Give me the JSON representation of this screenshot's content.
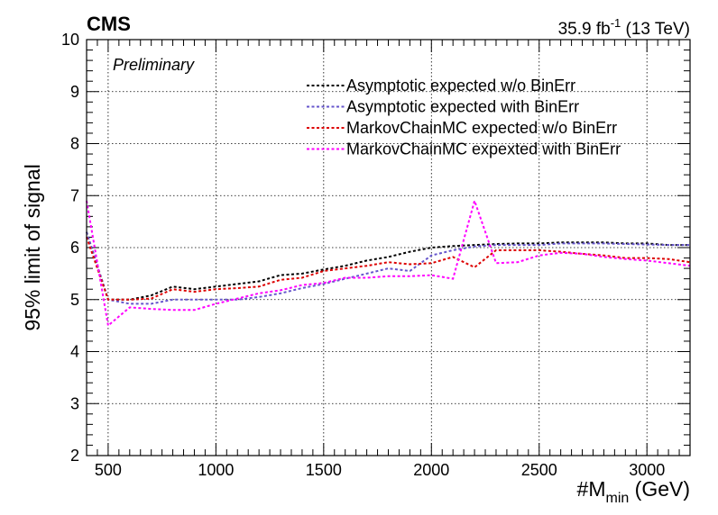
{
  "chart_data": {
    "type": "line",
    "experiment": "CMS",
    "status": "Preliminary",
    "lumi_text": "35.9 fb",
    "lumi_sup": "-1",
    "energy_text": " (13 TeV)",
    "xlabel": {
      "main": "#M",
      "sub": "min",
      "unit": " (GeV)"
    },
    "ylabel": "95% limit of signal",
    "xlim": [
      400,
      3200
    ],
    "ylim": [
      2,
      10
    ],
    "xticks": [
      500,
      1000,
      1500,
      2000,
      2500,
      3000
    ],
    "yticks": [
      2,
      3,
      4,
      5,
      6,
      7,
      8,
      9,
      10
    ],
    "grid": true,
    "legend_position": "top-right",
    "x": [
      400,
      500,
      600,
      700,
      800,
      900,
      1000,
      1100,
      1200,
      1300,
      1400,
      1500,
      1600,
      1700,
      1800,
      1900,
      2000,
      2100,
      2200,
      2300,
      2400,
      2500,
      2600,
      2700,
      2800,
      2900,
      3000,
      3100,
      3200
    ],
    "series": [
      {
        "name": "Asymptotic expected w/o BinErr",
        "color": "#000000",
        "values": [
          6.3,
          5.0,
          5.0,
          5.08,
          5.25,
          5.2,
          5.25,
          5.3,
          5.35,
          5.47,
          5.5,
          5.58,
          5.65,
          5.75,
          5.82,
          5.92,
          6.0,
          6.03,
          6.05,
          6.07,
          6.08,
          6.08,
          6.1,
          6.1,
          6.1,
          6.08,
          6.08,
          6.05,
          6.05
        ]
      },
      {
        "name": "Asymptotic expected with BinErr",
        "color": "#6655cc",
        "values": [
          6.3,
          5.0,
          4.92,
          4.92,
          5.0,
          5.0,
          5.0,
          5.0,
          5.05,
          5.12,
          5.22,
          5.3,
          5.4,
          5.5,
          5.6,
          5.55,
          5.85,
          5.95,
          6.02,
          6.05,
          6.05,
          6.05,
          6.08,
          6.08,
          6.08,
          6.07,
          6.06,
          6.05,
          6.05
        ]
      },
      {
        "name": "MarkovChainMC expected w/o BinErr",
        "color": "#dd0000",
        "values": [
          6.2,
          5.0,
          5.0,
          5.02,
          5.2,
          5.15,
          5.2,
          5.22,
          5.25,
          5.38,
          5.42,
          5.55,
          5.6,
          5.65,
          5.72,
          5.68,
          5.7,
          5.82,
          5.62,
          5.95,
          5.95,
          5.95,
          5.92,
          5.88,
          5.85,
          5.8,
          5.8,
          5.78,
          5.72
        ]
      },
      {
        "name": "MarkovChainMC expexted with BinErr",
        "color": "#ff00ff",
        "values": [
          6.9,
          4.5,
          4.85,
          4.82,
          4.8,
          4.8,
          4.92,
          5.02,
          5.12,
          5.18,
          5.28,
          5.32,
          5.42,
          5.42,
          5.45,
          5.45,
          5.47,
          5.4,
          6.9,
          5.7,
          5.72,
          5.85,
          5.9,
          5.88,
          5.82,
          5.78,
          5.75,
          5.7,
          5.65
        ]
      }
    ]
  }
}
